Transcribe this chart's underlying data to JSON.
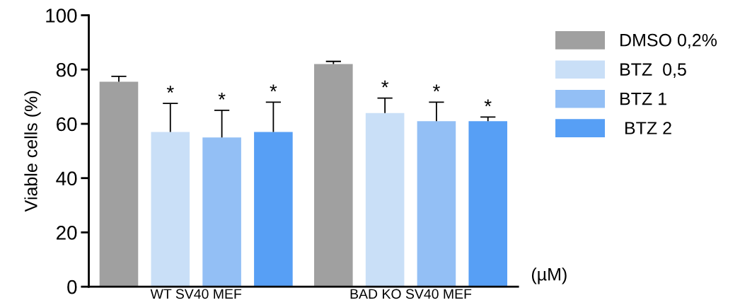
{
  "chart_data": {
    "type": "bar",
    "ylabel": "Viable cells (%)",
    "categories": [
      "WT SV40 MEF",
      "BAD KO SV40 MEF"
    ],
    "series": [
      {
        "name": "DMSO 0,2%",
        "color": "#a0a0a0",
        "values": [
          75.5,
          82
        ],
        "errors": [
          [
            75.5,
            77.5
          ],
          [
            82,
            83
          ]
        ]
      },
      {
        "name": "BTZ  0,5",
        "color": "#c9dff7",
        "values": [
          57,
          64
        ],
        "errors": [
          [
            57,
            67.5
          ],
          [
            64,
            69.5
          ]
        ],
        "value_labels": [
          "*",
          "*"
        ]
      },
      {
        "name": "BTZ 1",
        "color": "#93bff5",
        "values": [
          55,
          61
        ],
        "errors": [
          [
            55,
            65
          ],
          [
            61,
            68
          ]
        ],
        "value_labels": [
          "*",
          "*"
        ]
      },
      {
        "name": " BTZ 2",
        "color": "#579ff5",
        "values": [
          57,
          61
        ],
        "errors": [
          [
            57,
            68
          ],
          [
            61,
            62.5
          ]
        ],
        "value_labels": [
          "*",
          "*"
        ]
      }
    ],
    "ylim": [
      0,
      100
    ],
    "yticks": [
      0,
      20,
      40,
      60,
      80,
      100
    ],
    "annotations": [
      "(µM)"
    ],
    "grid": false,
    "legend": "top right"
  }
}
